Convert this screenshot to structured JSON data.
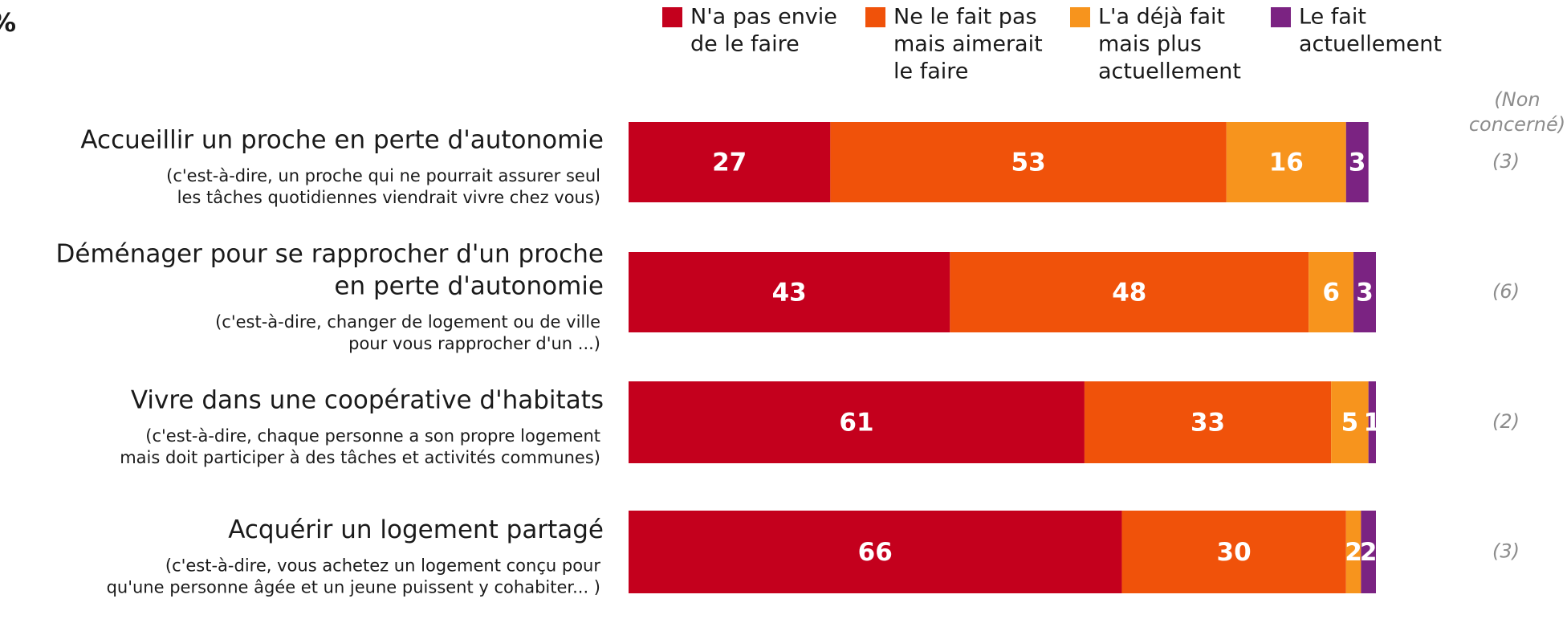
{
  "chart_data": {
    "type": "bar",
    "orientation": "horizontal",
    "stacked": true,
    "unit_label": "%",
    "categories": [
      [
        "Accueillir un proche en perte d'autonomie"
      ],
      [
        "Déménager pour se rapprocher d'un proche",
        "en perte d'autonomie"
      ],
      [
        "Vivre dans une coopérative d'habitats"
      ],
      [
        "Acquérir un logement partagé"
      ]
    ],
    "subtitles": [
      [
        "(c'est-à-dire, un proche qui ne pourrait assurer seul",
        "les tâches quotidiennes viendrait vivre chez vous)"
      ],
      [
        "(c'est-à-dire, changer de logement ou de ville",
        "pour vous rapprocher d'un ...)"
      ],
      [
        "(c'est-à-dire, chaque personne a son propre logement",
        "mais doit participer à des tâches et activités communes)"
      ],
      [
        "(c'est-à-dire, vous achetez un logement conçu pour",
        "qu'une personne âgée et un jeune puissent y cohabiter... )"
      ]
    ],
    "xlim": [
      0,
      100
    ],
    "series": [
      {
        "name": [
          "N'a pas envie",
          "de le faire"
        ],
        "color": "#c4001d",
        "values": [
          27,
          43,
          61,
          66
        ]
      },
      {
        "name": [
          "Ne le fait pas",
          "mais aimerait",
          "le faire"
        ],
        "color": "#f0520a",
        "values": [
          53,
          48,
          33,
          30
        ]
      },
      {
        "name": [
          "L'a déjà fait",
          "mais plus",
          "actuellement"
        ],
        "color": "#f7941d",
        "values": [
          16,
          6,
          5,
          2
        ]
      },
      {
        "name": [
          "Le fait",
          "actuellement"
        ],
        "color": "#7b2382",
        "values": [
          3,
          3,
          1,
          2
        ]
      }
    ],
    "non_concerne": {
      "label": [
        "(Non",
        "concerné)"
      ],
      "values": [
        3,
        6,
        2,
        3
      ],
      "value_labels": [
        "(3)",
        "(6)",
        "(2)",
        "(3)"
      ]
    }
  }
}
